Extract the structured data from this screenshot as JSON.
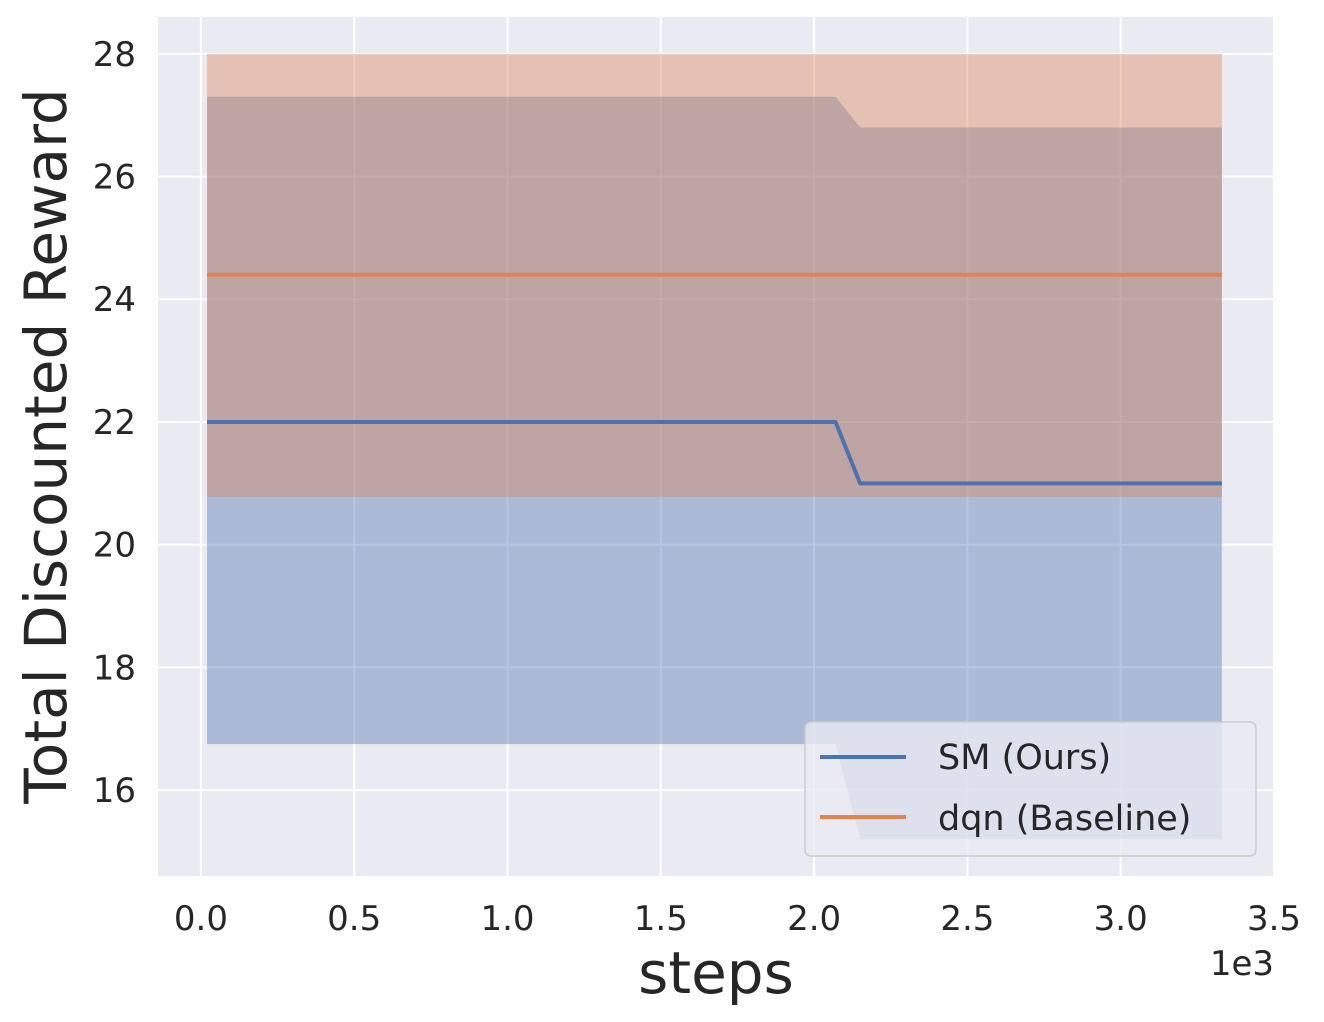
{
  "chart_data": {
    "type": "line",
    "xlabel": "steps",
    "ylabel": "Total Discounted Reward",
    "x_offset_label": "1e3",
    "xlim": [
      -0.14,
      3.5
    ],
    "ylim": [
      14.6,
      28.6
    ],
    "x_ticks": [
      0.0,
      0.5,
      1.0,
      1.5,
      2.0,
      2.5,
      3.0,
      3.5
    ],
    "x_tick_labels": [
      "0.0",
      "0.5",
      "1.0",
      "1.5",
      "2.0",
      "2.5",
      "3.0",
      "3.5"
    ],
    "y_ticks": [
      16,
      18,
      20,
      22,
      24,
      26,
      28
    ],
    "y_tick_labels": [
      "16",
      "18",
      "20",
      "22",
      "24",
      "26",
      "28"
    ],
    "grid": true,
    "legend_position": "lower-right",
    "series": [
      {
        "name": "SM (Ours)",
        "color": "#4c72b0",
        "band_color": "#4c72b0",
        "band_opacity": 0.4,
        "x": [
          0.02,
          2.07,
          2.15,
          3.33
        ],
        "y": [
          22.0,
          22.0,
          21.0,
          21.0
        ],
        "lower": [
          16.75,
          16.75,
          15.2,
          15.2
        ],
        "upper": [
          27.3,
          27.3,
          26.8,
          26.8
        ]
      },
      {
        "name": "dqn (Baseline)",
        "color": "#dd8452",
        "band_color": "#dd8452",
        "band_opacity": 0.4,
        "x": [
          0.02,
          2.07,
          2.15,
          3.33
        ],
        "y": [
          24.4,
          24.4,
          24.4,
          24.4
        ],
        "lower": [
          20.78,
          20.78,
          20.78,
          20.78
        ],
        "upper": [
          28.0,
          28.0,
          28.0,
          28.0
        ]
      }
    ]
  }
}
